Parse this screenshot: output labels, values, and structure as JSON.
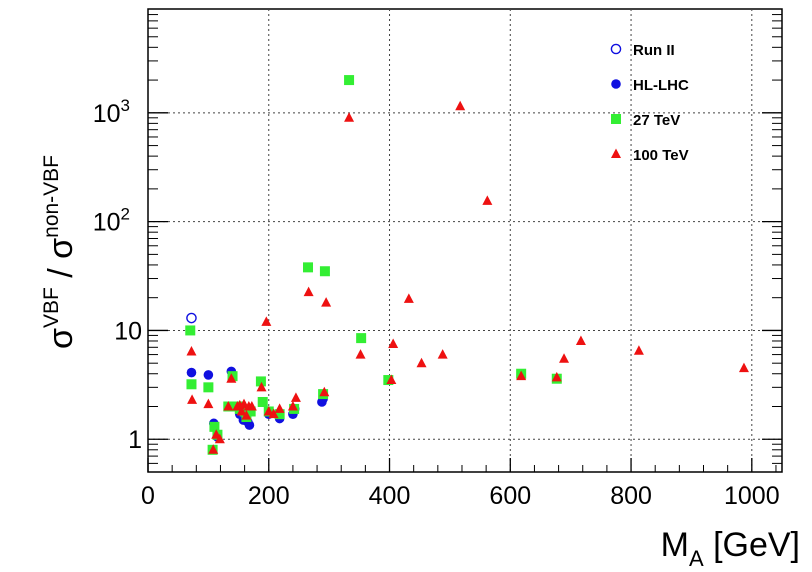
{
  "chart_data": {
    "type": "scatter",
    "title": "",
    "xlabel": {
      "base": "M",
      "sub": "A",
      "rest": " [GeV]"
    },
    "ylabel": {
      "s1": "σ",
      "sup1": "VBF",
      "sep": " / ",
      "s2": "σ",
      "sup2": "non-VBF"
    },
    "x_ticks": [
      "0",
      "200",
      "400",
      "600",
      "800",
      "1000"
    ],
    "y_ticks": [
      {
        "value": 1,
        "label": "1"
      },
      {
        "value": 10,
        "label": "10"
      },
      {
        "value": 100,
        "label": "10",
        "sup": "2"
      },
      {
        "value": 1000,
        "label": "10",
        "sup": "3"
      }
    ],
    "xlim": [
      0,
      1050
    ],
    "ylim": [
      0.5,
      9000
    ],
    "yscale": "log",
    "grid": true,
    "legend_position": "top-right",
    "series": [
      {
        "name": "Run II",
        "marker": "open-circle",
        "color": "#1010e0",
        "points": [
          [
            72,
            13
          ]
        ]
      },
      {
        "name": "HL-LHC",
        "marker": "filled-circle",
        "color": "#1010e0",
        "points": [
          [
            72,
            4.1
          ],
          [
            100,
            3.9
          ],
          [
            109,
            1.4
          ],
          [
            115,
            1.05
          ],
          [
            138,
            4.2
          ],
          [
            140,
            3.9
          ],
          [
            152,
            1.7
          ],
          [
            158,
            1.5
          ],
          [
            165,
            1.45
          ],
          [
            168,
            1.35
          ],
          [
            190,
            2.2
          ],
          [
            200,
            1.7
          ],
          [
            218,
            1.55
          ],
          [
            240,
            1.7
          ],
          [
            243,
            1.9
          ],
          [
            288,
            2.2
          ],
          [
            290,
            2.35
          ]
        ]
      },
      {
        "name": "27 TeV",
        "marker": "square",
        "color": "#33ee33",
        "points": [
          [
            70,
            10
          ],
          [
            72,
            3.2
          ],
          [
            100,
            3.0
          ],
          [
            107,
            0.8
          ],
          [
            110,
            1.3
          ],
          [
            115,
            1.1
          ],
          [
            133,
            2.0
          ],
          [
            140,
            3.8
          ],
          [
            148,
            2.0
          ],
          [
            152,
            1.9
          ],
          [
            160,
            1.8
          ],
          [
            163,
            1.6
          ],
          [
            170,
            1.8
          ],
          [
            187,
            3.4
          ],
          [
            190,
            2.2
          ],
          [
            200,
            1.8
          ],
          [
            218,
            1.7
          ],
          [
            242,
            1.9
          ],
          [
            265,
            38
          ],
          [
            293,
            35
          ],
          [
            290,
            2.6
          ],
          [
            333,
            2000
          ],
          [
            353,
            8.5
          ],
          [
            398,
            3.5
          ],
          [
            618,
            4.0
          ],
          [
            677,
            3.6
          ]
        ]
      },
      {
        "name": "100 TeV",
        "marker": "triangle",
        "color": "#ee1111",
        "points": [
          [
            72,
            6.4
          ],
          [
            73,
            2.3
          ],
          [
            100,
            2.1
          ],
          [
            108,
            0.8
          ],
          [
            113,
            1.1
          ],
          [
            119,
            1.0
          ],
          [
            133,
            2.0
          ],
          [
            138,
            3.6
          ],
          [
            148,
            2.0
          ],
          [
            152,
            2.05
          ],
          [
            155,
            1.8
          ],
          [
            159,
            2.1
          ],
          [
            163,
            1.65
          ],
          [
            167,
            2.0
          ],
          [
            172,
            2.0
          ],
          [
            188,
            3.0
          ],
          [
            196,
            12
          ],
          [
            200,
            1.8
          ],
          [
            208,
            1.7
          ],
          [
            218,
            1.9
          ],
          [
            240,
            2.0
          ],
          [
            245,
            2.4
          ],
          [
            266,
            22.5
          ],
          [
            292,
            2.7
          ],
          [
            295,
            18
          ],
          [
            333,
            900
          ],
          [
            352,
            6.0
          ],
          [
            403,
            3.5
          ],
          [
            406,
            7.5
          ],
          [
            432,
            19.5
          ],
          [
            453,
            5.0
          ],
          [
            488,
            6.0
          ],
          [
            517,
            1150
          ],
          [
            562,
            155
          ],
          [
            618,
            3.8
          ],
          [
            677,
            3.7
          ],
          [
            689,
            5.5
          ],
          [
            717,
            8.0
          ],
          [
            813,
            6.5
          ],
          [
            987,
            4.5
          ]
        ]
      }
    ]
  }
}
